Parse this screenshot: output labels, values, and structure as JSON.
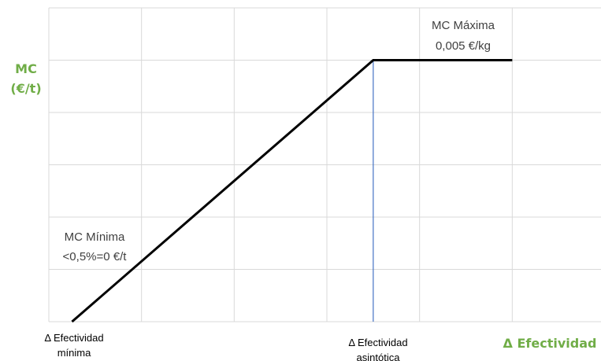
{
  "colors": {
    "line": "#000000",
    "grid": "#d9d9d9",
    "marker": "#4472c4",
    "axis_title": "#70ad47",
    "annotation": "#404040"
  },
  "chart_data": {
    "type": "line",
    "title": "",
    "ylabel_line1": "MC",
    "ylabel_line2": "(€/t)",
    "xlabel": "Δ Efectividad",
    "x_tick_min_line1": "Δ Efectividad",
    "x_tick_min_line2": "mínima",
    "x_tick_asym_line1": "Δ Efectividad",
    "x_tick_asym_line2": "asintótica",
    "annotation_max_line1": "MC Máxima",
    "annotation_max_line2": "0,005 €/kg",
    "annotation_min_line1": "MC Mínima",
    "annotation_min_line2": "<0,5%=0 €/t",
    "grid": true,
    "xlim": [
      0,
      6
    ],
    "ylim": [
      0,
      6
    ],
    "series": [
      {
        "x": [
          0.25,
          3.5,
          5.0
        ],
        "y": [
          0,
          5,
          5
        ]
      }
    ],
    "asymptote_x": 3.5
  }
}
